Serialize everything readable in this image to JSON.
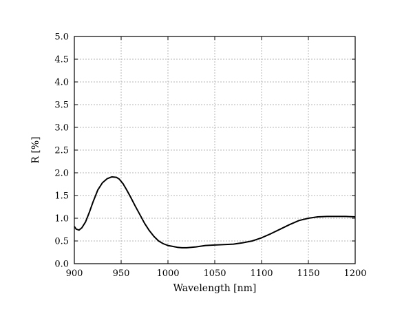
{
  "chart_data": {
    "type": "line",
    "title": "",
    "xlabel": "Wavelength [nm]",
    "ylabel": "R [%]",
    "xlim": [
      900,
      1200
    ],
    "ylim": [
      0,
      5
    ],
    "xticks": [
      900,
      950,
      1000,
      1050,
      1100,
      1150,
      1200
    ],
    "xtick_labels": [
      "900",
      "950",
      "1000",
      "1050",
      "1100",
      "1150",
      "1200"
    ],
    "yticks": [
      0,
      0.5,
      1,
      1.5,
      2,
      2.5,
      3,
      3.5,
      4,
      4.5,
      5
    ],
    "ytick_labels": [
      "0.0",
      "0.5",
      "1.0",
      "1.5",
      "2.0",
      "2.5",
      "3.0",
      "3.5",
      "4.0",
      "4.5",
      "5.0"
    ],
    "grid": true,
    "legend": "none",
    "series": [
      {
        "color": "#000000",
        "x": [
          900,
          902,
          905,
          908,
          912,
          916,
          920,
          925,
          930,
          935,
          940,
          945,
          948,
          952,
          956,
          960,
          965,
          970,
          975,
          980,
          985,
          990,
          995,
          1000,
          1005,
          1010,
          1015,
          1020,
          1025,
          1030,
          1040,
          1050,
          1060,
          1070,
          1080,
          1090,
          1100,
          1110,
          1120,
          1130,
          1140,
          1150,
          1160,
          1170,
          1180,
          1190,
          1200
        ],
        "y": [
          0.82,
          0.76,
          0.74,
          0.79,
          0.92,
          1.13,
          1.36,
          1.62,
          1.78,
          1.87,
          1.91,
          1.9,
          1.86,
          1.76,
          1.62,
          1.47,
          1.27,
          1.08,
          0.89,
          0.73,
          0.6,
          0.5,
          0.44,
          0.4,
          0.38,
          0.36,
          0.35,
          0.35,
          0.36,
          0.37,
          0.4,
          0.41,
          0.42,
          0.43,
          0.46,
          0.5,
          0.57,
          0.66,
          0.76,
          0.86,
          0.95,
          1.0,
          1.03,
          1.04,
          1.04,
          1.04,
          1.03
        ]
      }
    ]
  }
}
